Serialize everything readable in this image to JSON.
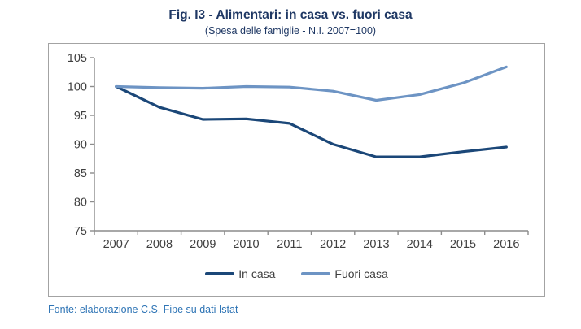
{
  "figure": {
    "title": "Fig. I3 - Alimentari: in casa vs. fuori casa",
    "subtitle": "(Spesa delle famiglie - N.I. 2007=100)",
    "source": "Fonte: elaborazione C.S. Fipe su dati Istat"
  },
  "colors": {
    "title_color": "#1f3864",
    "source_color": "#2e74b5",
    "axis_color": "#8c8c8c",
    "tick_label_color": "#3f3f3f",
    "border_color": "#a3a3a3"
  },
  "chart_data": {
    "type": "line",
    "title": "Fig. I3 - Alimentari: in casa vs. fuori casa",
    "subtitle": "(Spesa delle famiglie - N.I. 2007=100)",
    "categories": [
      "2007",
      "2008",
      "2009",
      "2010",
      "2011",
      "2012",
      "2013",
      "2014",
      "2015",
      "2016"
    ],
    "series": [
      {
        "name": "In casa",
        "color": "#1b4778",
        "values": [
          100,
          96.4,
          94.3,
          94.4,
          93.6,
          90.0,
          87.8,
          87.8,
          88.7,
          89.5
        ]
      },
      {
        "name": "Fuori casa",
        "color": "#6d94c4",
        "values": [
          100,
          99.8,
          99.7,
          100.0,
          99.9,
          99.2,
          97.6,
          98.6,
          100.6,
          103.4
        ]
      }
    ],
    "ylim": [
      75,
      105
    ],
    "yticks": [
      75,
      80,
      85,
      90,
      95,
      100,
      105
    ],
    "grid": false,
    "legend_position": "bottom"
  }
}
